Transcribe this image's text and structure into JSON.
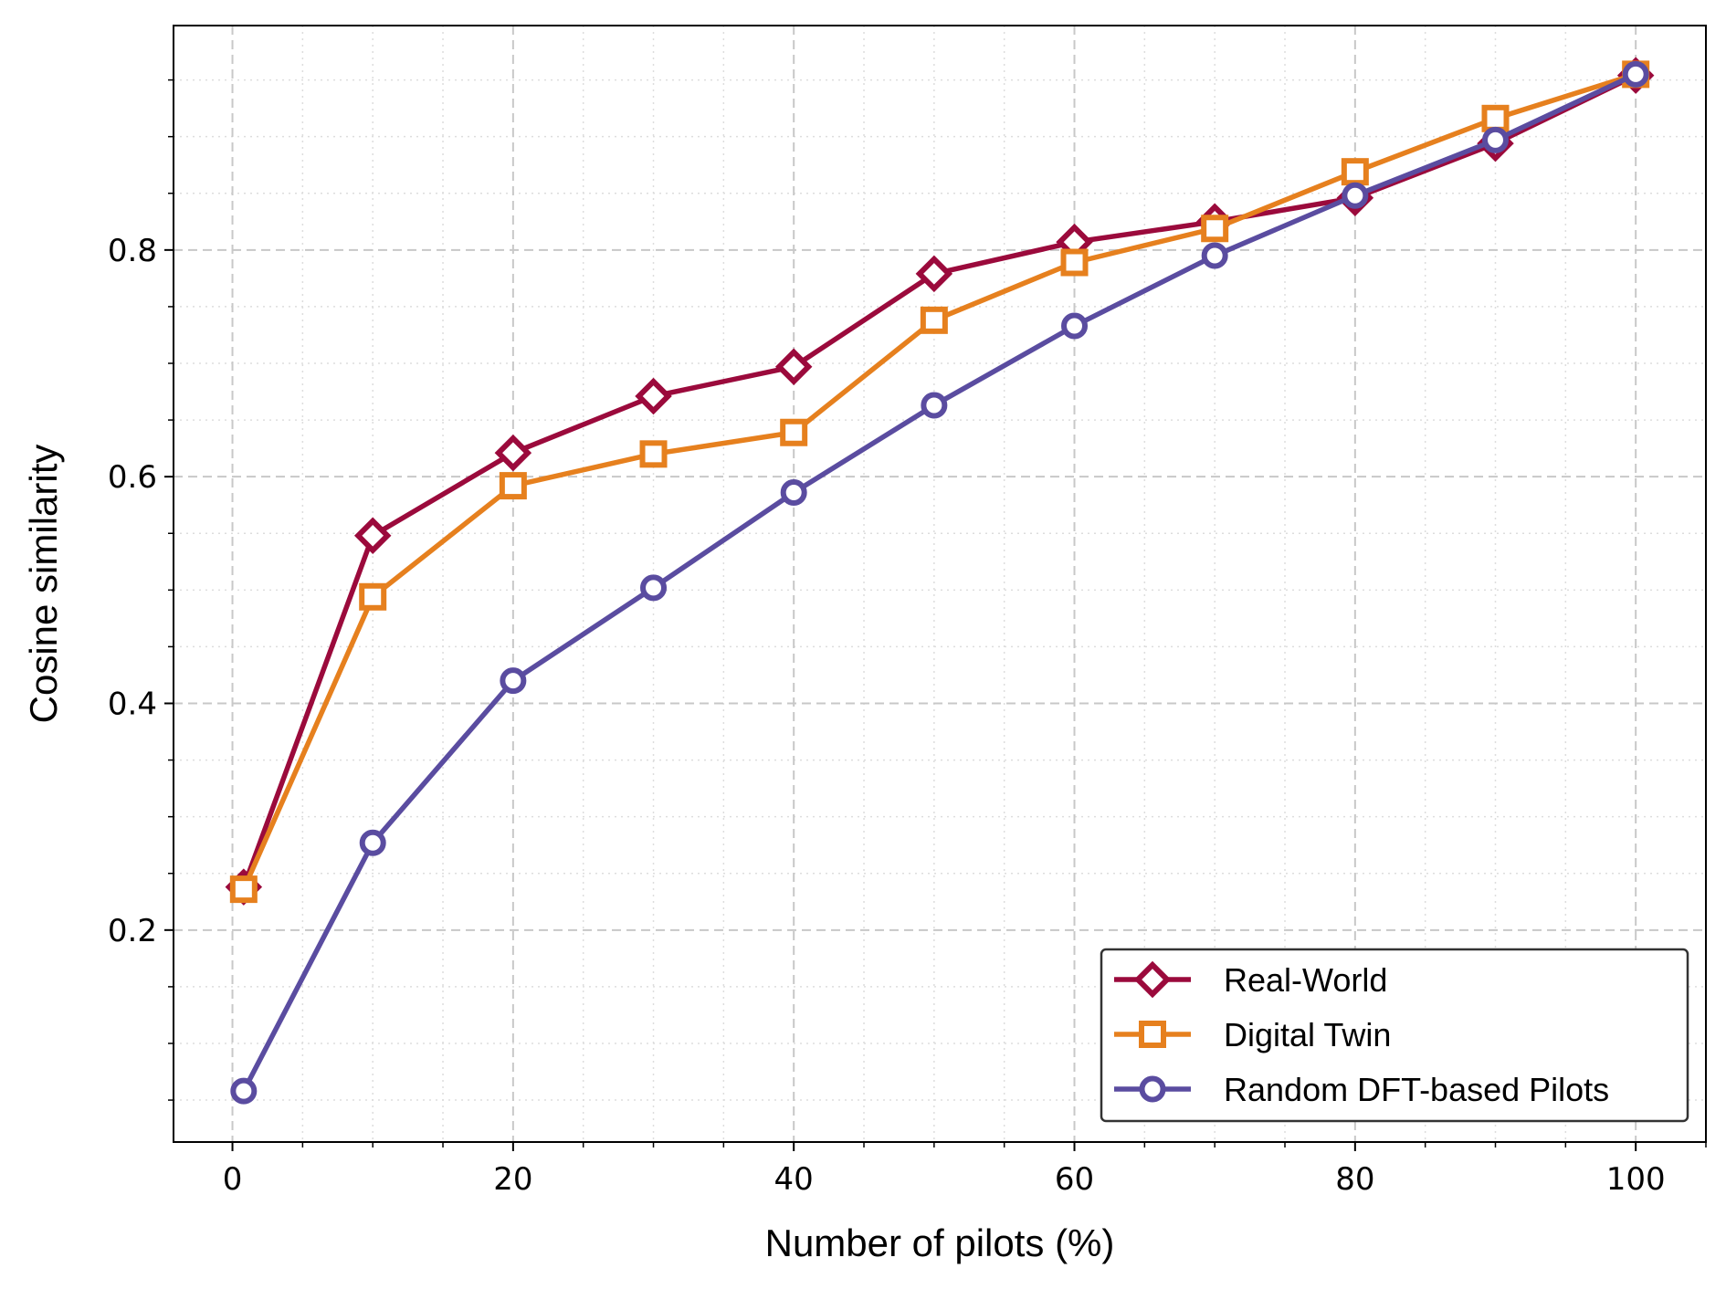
{
  "chart_data": {
    "type": "line",
    "xlabel": "Number of pilots (%)",
    "ylabel": "Cosine similarity",
    "xlim": [
      -4.2,
      105.0
    ],
    "ylim": [
      0.013,
      0.998
    ],
    "x_ticks": [
      0,
      20,
      40,
      60,
      80,
      100
    ],
    "x_tick_labels": [
      "0",
      "20",
      "40",
      "60",
      "80",
      "100"
    ],
    "x_minor_step": 5,
    "y_ticks": [
      0.2,
      0.4,
      0.6,
      0.8
    ],
    "y_tick_labels": [
      "0.2",
      "0.4",
      "0.6",
      "0.8"
    ],
    "y_minor_step": 0.05,
    "grid": true,
    "legend_position": "lower-right",
    "series": [
      {
        "name": "Real-World",
        "color": "#9b0a3c",
        "marker": "diamond",
        "x": [
          0.8,
          10,
          20,
          30,
          40,
          50,
          60,
          70,
          80,
          90,
          100
        ],
        "y": [
          0.238,
          0.548,
          0.621,
          0.671,
          0.697,
          0.779,
          0.807,
          0.825,
          0.846,
          0.894,
          0.954
        ]
      },
      {
        "name": "Digital Twin",
        "color": "#e6801e",
        "marker": "square",
        "x": [
          0.8,
          10,
          20,
          30,
          40,
          50,
          60,
          70,
          80,
          90,
          100
        ],
        "y": [
          0.236,
          0.494,
          0.592,
          0.62,
          0.639,
          0.738,
          0.789,
          0.819,
          0.869,
          0.916,
          0.955
        ]
      },
      {
        "name": "Random DFT-based Pilots",
        "color": "#5a4ca0",
        "marker": "circle",
        "x": [
          0.8,
          10,
          20,
          30,
          40,
          50,
          60,
          70,
          80,
          90,
          100
        ],
        "y": [
          0.058,
          0.277,
          0.42,
          0.502,
          0.586,
          0.663,
          0.733,
          0.795,
          0.848,
          0.897,
          0.955
        ]
      }
    ]
  }
}
